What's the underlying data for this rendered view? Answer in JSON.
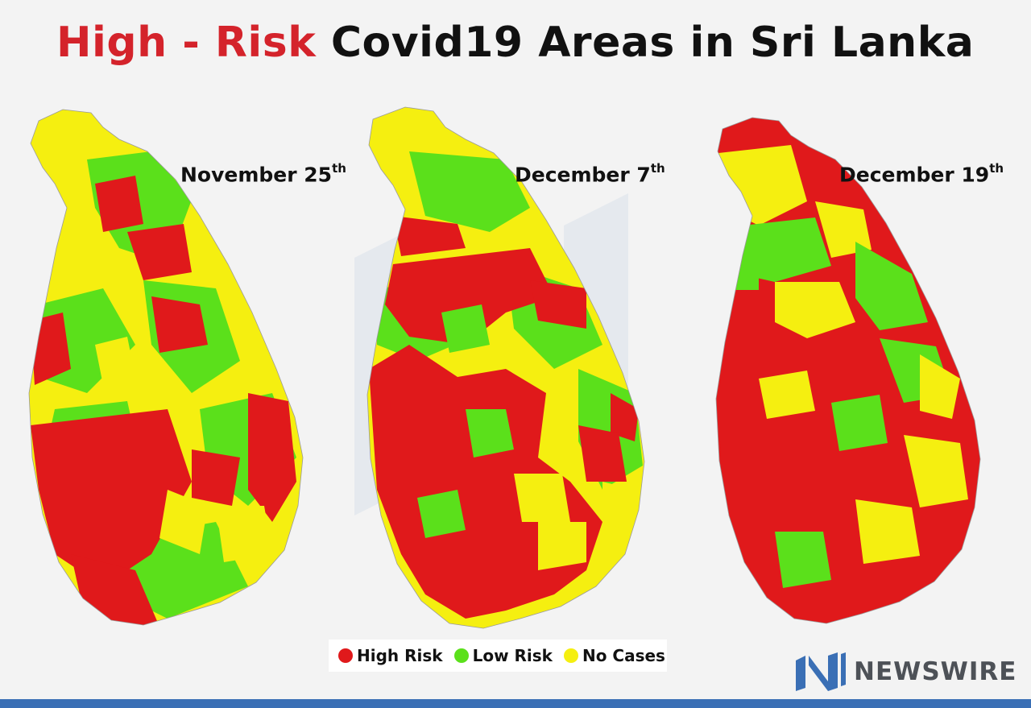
{
  "title": {
    "highlight": "High - Risk",
    "rest": "Covid19 Areas in Sri Lanka"
  },
  "maps": [
    {
      "date": "November 25",
      "suffix": "th"
    },
    {
      "date": "December 7",
      "suffix": "th"
    },
    {
      "date": "December 19",
      "suffix": "th"
    }
  ],
  "legend": [
    {
      "label": "High Risk",
      "color": "#e0191b"
    },
    {
      "label": "Low Risk",
      "color": "#5be01b"
    },
    {
      "label": "No Cases",
      "color": "#f5ef10"
    }
  ],
  "brand": {
    "name": "NEWSWIRE",
    "color": "#3a6fb5"
  },
  "colors": {
    "high": "#e0191b",
    "low": "#5be01b",
    "none": "#f5ef10",
    "title_red": "#d4232b"
  }
}
